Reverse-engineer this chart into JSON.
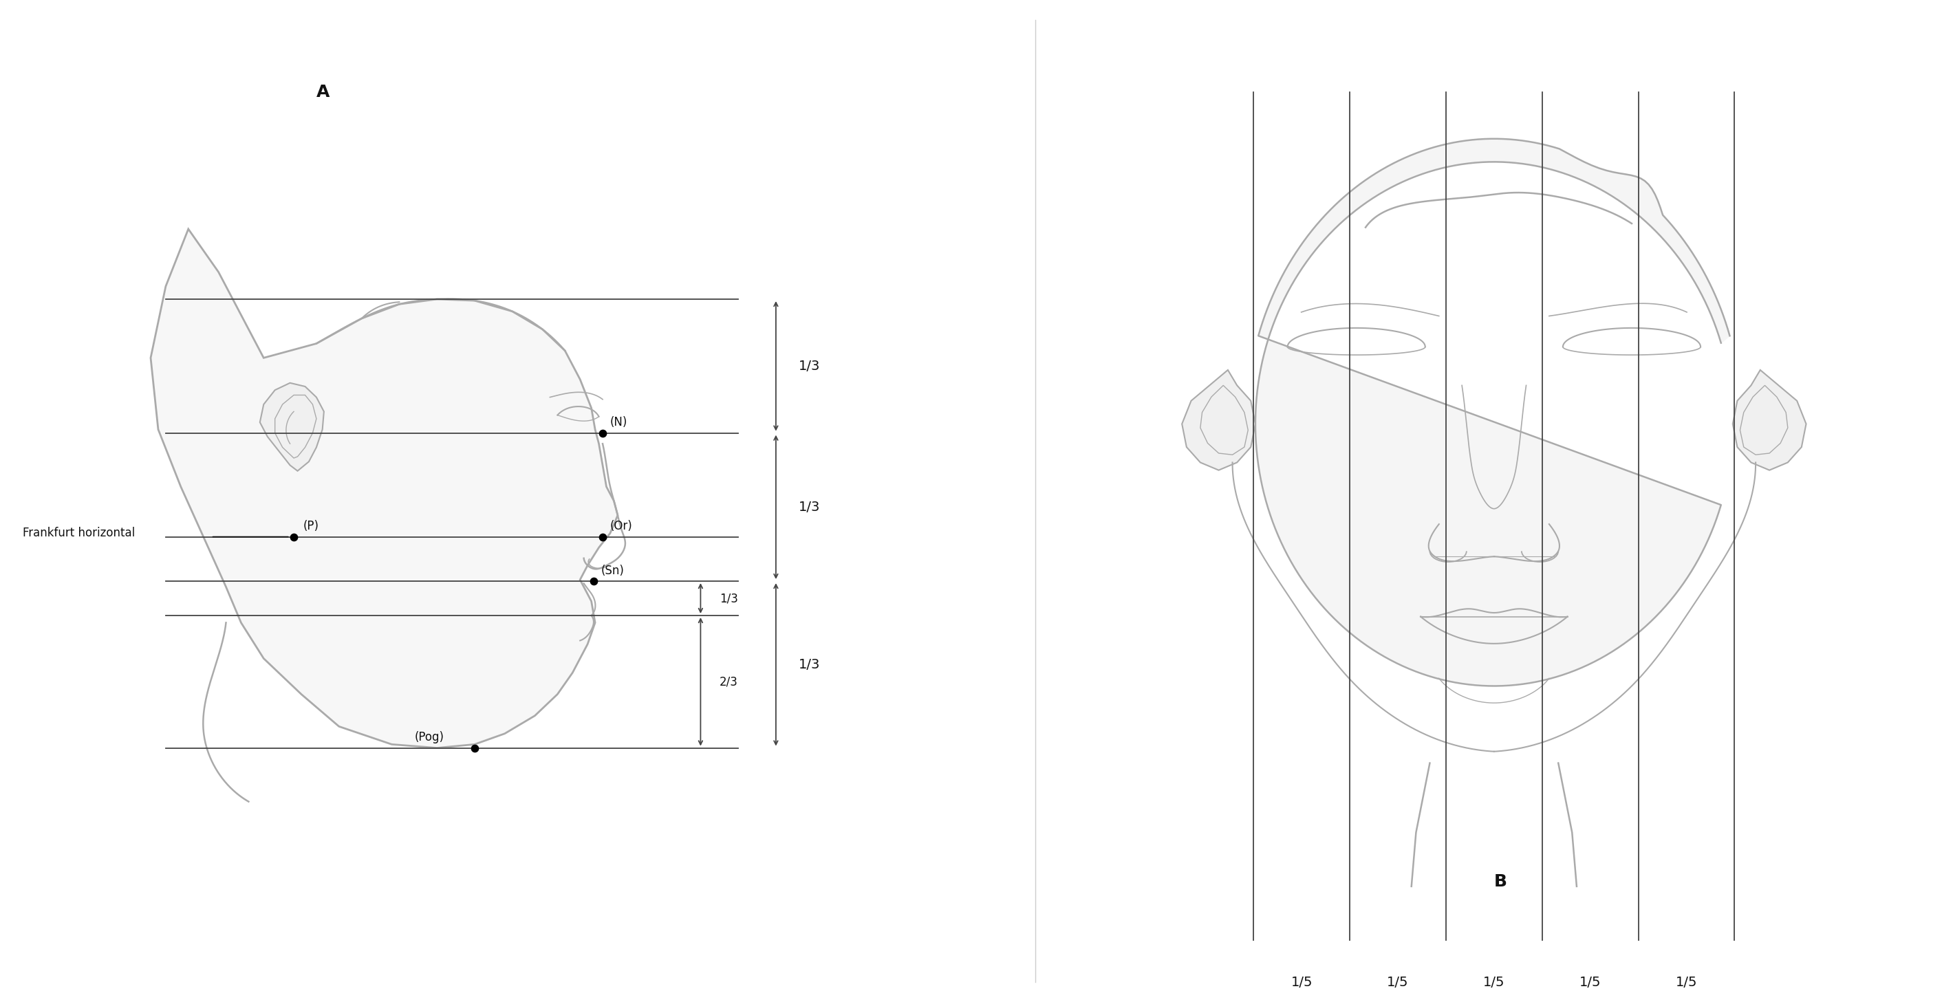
{
  "fig_width": 28.39,
  "fig_height": 14.57,
  "bg_color": "#ffffff",
  "line_color": "#aaaaaa",
  "dark_line_color": "#444444",
  "annotation_color": "#111111",
  "label_A": "A",
  "label_B": "B",
  "frankfurt_label": "Frankfurt horizontal"
}
